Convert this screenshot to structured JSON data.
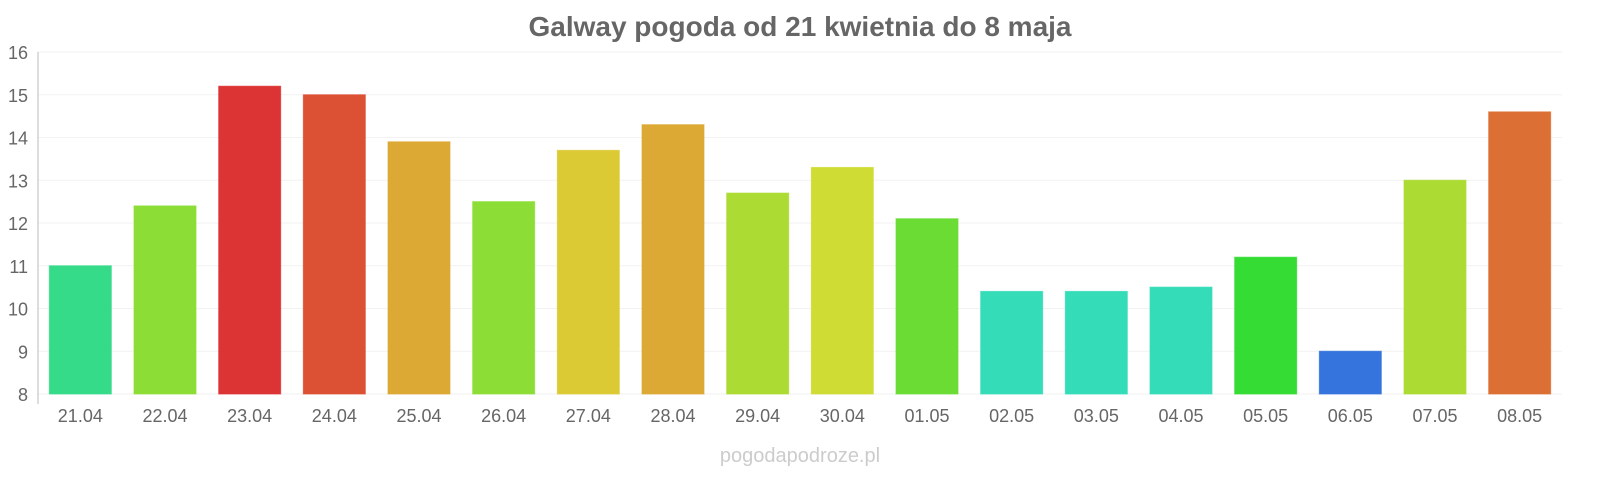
{
  "chart_data": {
    "type": "bar",
    "title": "Galway pogoda od 21 kwietnia do 8 maja",
    "xlabel": "",
    "ylabel": "",
    "ylim": [
      8,
      16
    ],
    "yticks": [
      "8",
      "9",
      "10",
      "11",
      "12",
      "13",
      "14",
      "15",
      "16"
    ],
    "grid": true,
    "categories": [
      "21.04",
      "22.04",
      "23.04",
      "24.04",
      "25.04",
      "26.04",
      "27.04",
      "28.04",
      "29.04",
      "30.04",
      "01.05",
      "02.05",
      "03.05",
      "04.05",
      "05.05",
      "06.05",
      "07.05",
      "08.05"
    ],
    "values": [
      11.0,
      12.4,
      15.2,
      15.0,
      13.9,
      12.5,
      13.7,
      14.3,
      12.7,
      13.3,
      12.1,
      10.4,
      10.4,
      10.5,
      11.2,
      9.0,
      13.0,
      14.6
    ],
    "colors": [
      "#36db8a",
      "#8cde36",
      "#dc3434",
      "#dc5034",
      "#dca934",
      "#8cde36",
      "#dcca34",
      "#dca934",
      "#acdc34",
      "#cedc34",
      "#6bdc34",
      "#34dcb8",
      "#34dcb8",
      "#34dcb8",
      "#34dc34",
      "#3474dc",
      "#acdc34",
      "#dc7034"
    ]
  },
  "watermark": "pogodapodroze.pl"
}
